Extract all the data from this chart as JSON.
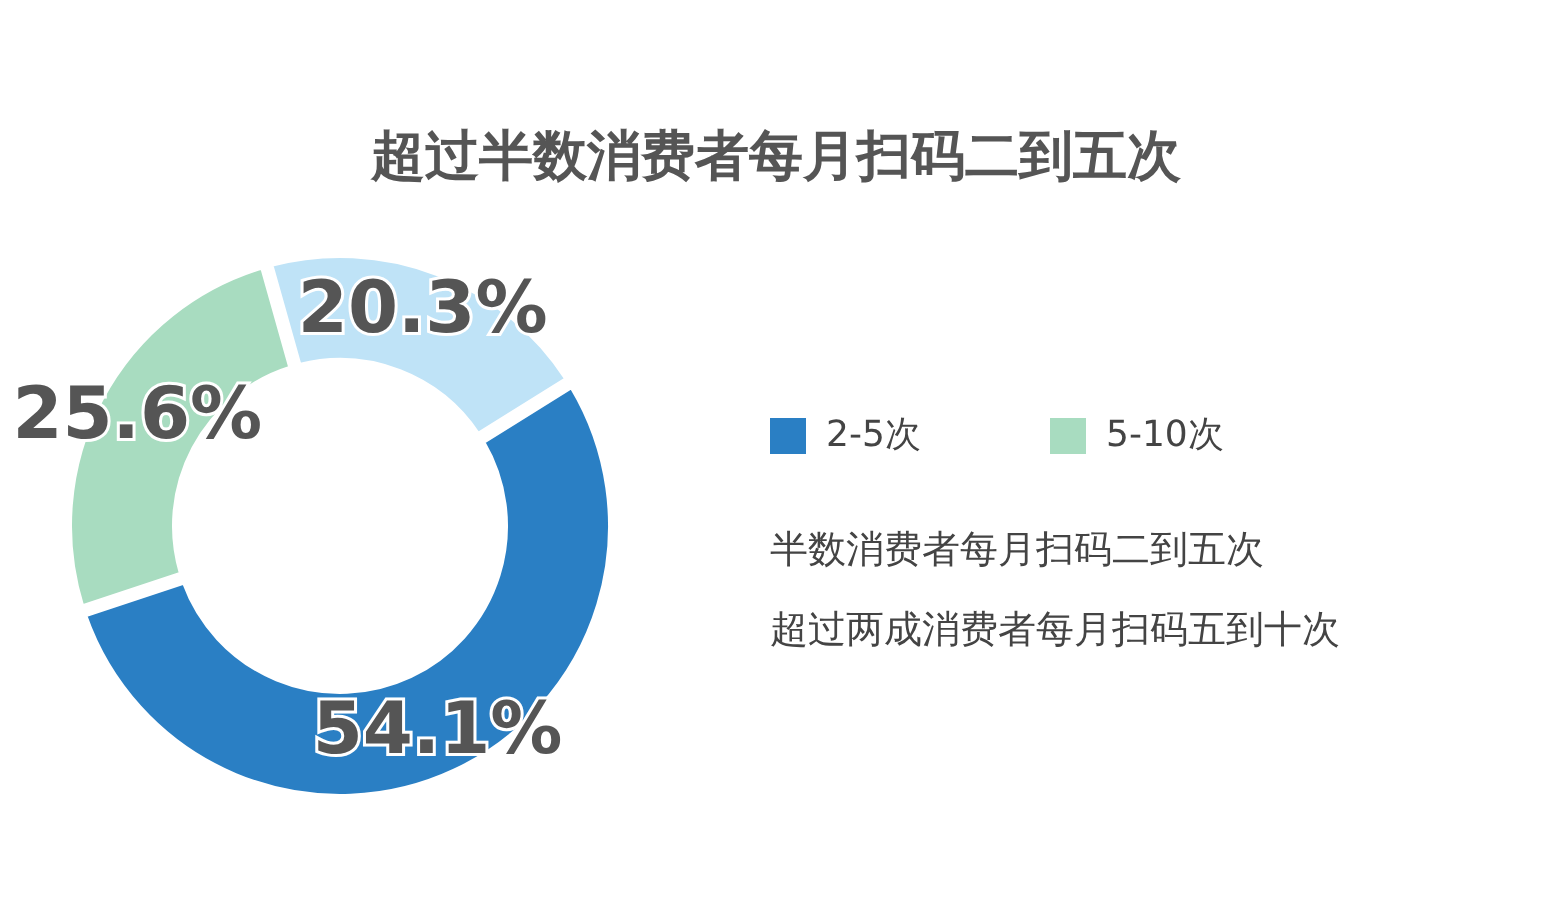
{
  "chart_data": {
    "type": "donut",
    "title": "超过半数消费者每月扫码二到五次",
    "categories": [
      "2-5次",
      "5-10次",
      null
    ],
    "values": [
      54.1,
      25.6,
      20.3
    ],
    "colors": [
      "#2a7fc4",
      "#a8dcc0",
      "#bfe3f7"
    ],
    "value_labels": [
      "54.1%",
      "25.6%",
      "20.3%"
    ],
    "legend": "right",
    "annotations": [
      "半数消费者每月扫码二到五次",
      "超过两成消费者每月扫码五到十次"
    ]
  }
}
